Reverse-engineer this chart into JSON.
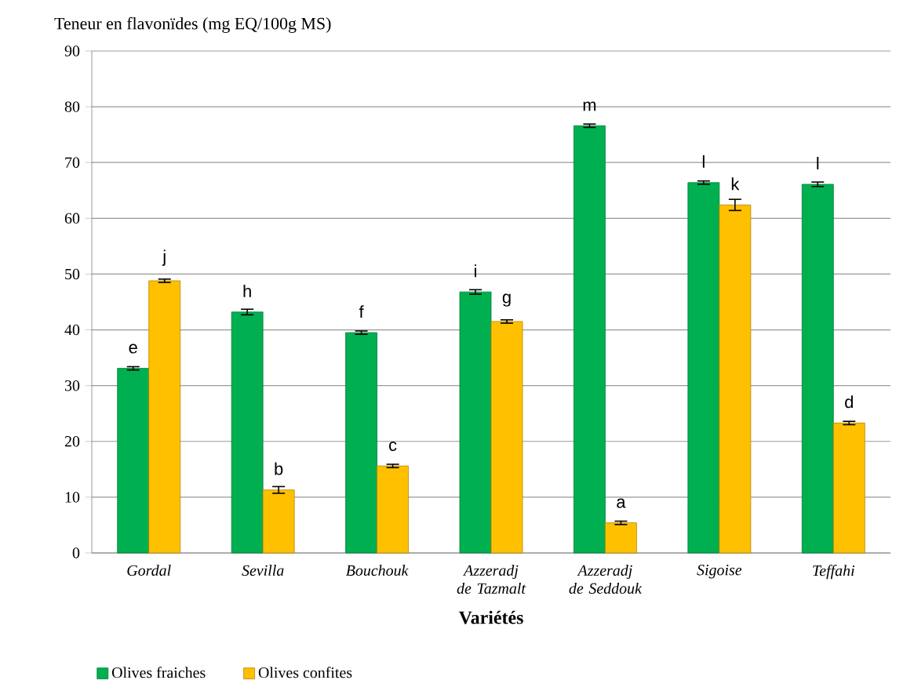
{
  "chart_data": {
    "type": "bar",
    "ylabel": "Teneur en flavonïdes (mg  EQ/100g MS)",
    "xlabel": "Variétés",
    "categories": [
      "Gordal",
      "Sevilla",
      "Bouchouk",
      "Azzeradj de Tazmalt",
      "Azzeradj de Seddouk",
      "Sigoise",
      "Teffahi"
    ],
    "series": [
      {
        "name": "Olives  fraiches",
        "color": "#00b050",
        "values": [
          33.1,
          43.2,
          39.5,
          46.8,
          76.6,
          66.4,
          66.1
        ],
        "errors": [
          0.3,
          0.5,
          0.3,
          0.4,
          0.3,
          0.3,
          0.4
        ],
        "value_labels": [
          "e",
          "h",
          "f",
          "i",
          "m",
          "l",
          "l"
        ]
      },
      {
        "name": "Olives  confites",
        "color": "#ffc000",
        "values": [
          48.8,
          11.3,
          15.6,
          41.5,
          5.4,
          62.4,
          23.3
        ],
        "errors": [
          0.3,
          0.6,
          0.3,
          0.3,
          0.3,
          1.0,
          0.3
        ],
        "value_labels": [
          "j",
          "b",
          "c",
          "g",
          "a",
          "k",
          "d"
        ]
      }
    ],
    "ylim": [
      0,
      90
    ],
    "yticks": [
      0,
      10,
      20,
      30,
      40,
      50,
      60,
      70,
      80,
      90
    ],
    "grid": "y",
    "legend": "bottom left"
  }
}
